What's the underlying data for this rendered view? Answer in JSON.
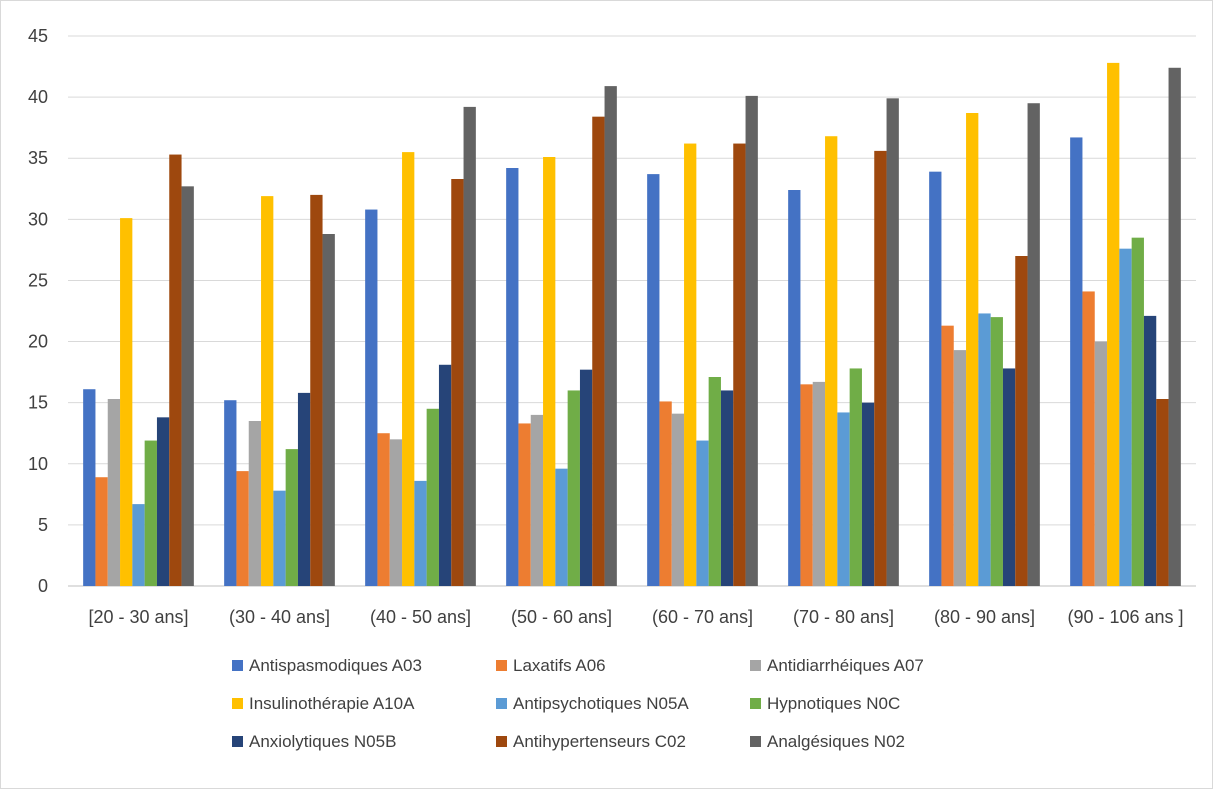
{
  "chart_data": {
    "type": "bar",
    "title": "",
    "xlabel": "",
    "ylabel": "",
    "ylim": [
      0,
      45
    ],
    "yticks": [
      0,
      5,
      10,
      15,
      20,
      25,
      30,
      35,
      40,
      45
    ],
    "grid": true,
    "legend_position": "bottom",
    "categories": [
      "[20 - 30 ans]",
      "(30 - 40 ans]",
      "(40 - 50 ans]",
      "(50 - 60 ans]",
      "(60 - 70 ans]",
      "(70 - 80 ans]",
      "(80 - 90 ans]",
      "(90 - 106 ans ]"
    ],
    "series": [
      {
        "name": "Antispasmodiques A03",
        "color": "#4472c4",
        "values": [
          16.1,
          15.2,
          30.8,
          34.2,
          33.7,
          32.4,
          33.9,
          36.7
        ]
      },
      {
        "name": "Laxatifs A06",
        "color": "#ed7d31",
        "values": [
          8.9,
          9.4,
          12.5,
          13.3,
          15.1,
          16.5,
          21.3,
          24.1
        ]
      },
      {
        "name": "Antidiarrhéiques A07",
        "color": "#a5a5a5",
        "values": [
          15.3,
          13.5,
          12.0,
          14.0,
          14.1,
          16.7,
          19.3,
          20.0
        ]
      },
      {
        "name": "Insulinothérapie A10A",
        "color": "#ffc000",
        "values": [
          30.1,
          31.9,
          35.5,
          35.1,
          36.2,
          36.8,
          38.7,
          42.8
        ]
      },
      {
        "name": "Antipsychotiques N05A",
        "color": "#5b9bd5",
        "values": [
          6.7,
          7.8,
          8.6,
          9.6,
          11.9,
          14.2,
          22.3,
          27.6
        ]
      },
      {
        "name": "Hypnotiques N0C",
        "color": "#70ad47",
        "values": [
          11.9,
          11.2,
          14.5,
          16.0,
          17.1,
          17.8,
          22.0,
          28.5
        ]
      },
      {
        "name": "Anxiolytiques N05B",
        "color": "#264478",
        "values": [
          13.8,
          15.8,
          18.1,
          17.7,
          16.0,
          15.0,
          17.8,
          22.1
        ]
      },
      {
        "name": "Antihypertenseurs C02",
        "color": "#9e480e",
        "values": [
          35.3,
          32.0,
          33.3,
          38.4,
          36.2,
          35.6,
          27.0,
          15.3
        ]
      },
      {
        "name": "Analgésiques N02",
        "color": "#636363",
        "values": [
          32.7,
          28.8,
          39.2,
          40.9,
          40.1,
          39.9,
          39.5,
          42.4
        ]
      }
    ]
  }
}
